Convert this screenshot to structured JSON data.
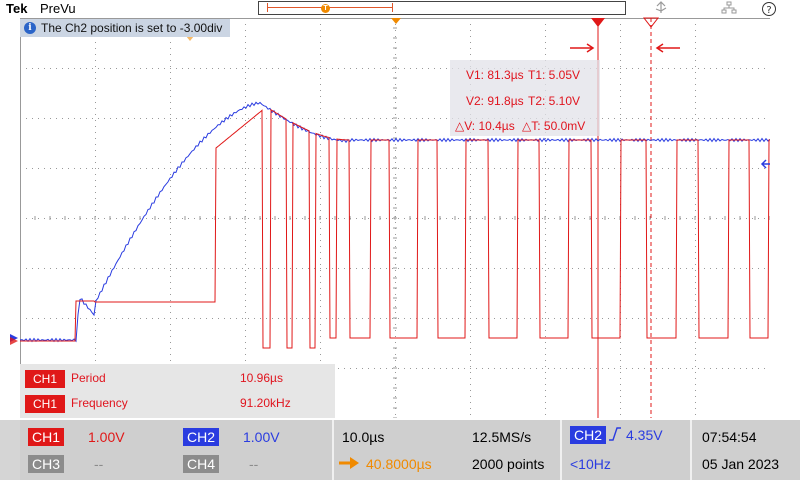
{
  "header": {
    "brand": "Tek",
    "acquisition_state": "PreVu",
    "record_trigger_marker": "T",
    "icons": [
      "usb-icon",
      "network-icon",
      "help-icon"
    ]
  },
  "info_banner": {
    "icon": "info-icon",
    "message": "The Ch2 position is set to -3.00div"
  },
  "cursor_readout": {
    "v1": "V1: 81.3µs",
    "t1": "T1: 5.05V",
    "v2": "V2: 91.8µs",
    "t2": "T2: 5.10V",
    "delta_v": "△V: 10.4µs",
    "delta_t": "△T: 50.0mV"
  },
  "measurements": [
    {
      "channel": "CH1",
      "name": "Period",
      "value": "10.96µs"
    },
    {
      "channel": "CH1",
      "name": "Frequency",
      "value": "91.20kHz"
    }
  ],
  "channels": {
    "ch1": {
      "label": "CH1",
      "scale": "1.00V",
      "color": "#e01818"
    },
    "ch2": {
      "label": "CH2",
      "scale": "1.00V",
      "color": "#2a3ce0"
    },
    "ch3": {
      "label": "CH3",
      "scale": "--",
      "color": "#8c8c8c"
    },
    "ch4": {
      "label": "CH4",
      "scale": "--",
      "color": "#8c8c8c"
    }
  },
  "timebase": {
    "scale": "10.0µs",
    "sample_rate": "12.5MS/s",
    "position": "40.8000µs",
    "record_length": "2000 points"
  },
  "trigger": {
    "source": "CH2",
    "level": "4.35V",
    "frequency": "<10Hz"
  },
  "clock": {
    "time": "07:54:54",
    "date": "05 Jan 2023"
  },
  "colors": {
    "ch1": "#e01818",
    "ch2": "#2a3ce0",
    "trigger_orange": "#f08a00",
    "grid": "#999999"
  }
}
